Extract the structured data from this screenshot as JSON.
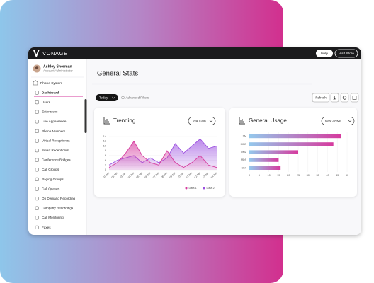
{
  "header": {
    "brand": "VONAGE",
    "buttons": [
      "Help",
      "Visit Store"
    ]
  },
  "sidebar": {
    "user_name": "Ashley Sherman",
    "user_role": "Account Administrator",
    "section": "Phone System",
    "items": [
      "Dashboard",
      "Users",
      "Extensions",
      "Line Appearance",
      "Phone Numbers",
      "Virtual Receptionist",
      "Smart Receptionist",
      "Conference Bridges",
      "Call Groups",
      "Paging Groups",
      "Call Queues",
      "On Demand Recording",
      "Company Recordings",
      "Call Monitoring",
      "Faxes"
    ],
    "active": 0
  },
  "main": {
    "title": "General Stats",
    "filter": "Today",
    "advanced_filters": "Advanced Filters",
    "refresh": "Refresh"
  },
  "chart_data": [
    {
      "type": "area",
      "title": "Trending",
      "dropdown": "Total Calls",
      "categories": [
        "01 Jan",
        "02 Jan",
        "03 Jan",
        "04 Jan",
        "05 Jan",
        "06 Jan",
        "07 Jan",
        "08 Jan",
        "09 Jan",
        "10 Jan",
        "11 Jan",
        "12 Jan",
        "13 Jan",
        "14 Jan"
      ],
      "series": [
        {
          "name": "Data 1",
          "color": "#d63a9e",
          "values": [
            1,
            3,
            7,
            12,
            6,
            3,
            2,
            8,
            3,
            1,
            3,
            6,
            2,
            1
          ]
        },
        {
          "name": "Data 2",
          "color": "#9b4fe0",
          "values": [
            2,
            4,
            5,
            6,
            3,
            5,
            3,
            5,
            11,
            7,
            10,
            13,
            9,
            10
          ]
        }
      ],
      "ylim": [
        0,
        14
      ],
      "yticks": [
        0,
        2,
        4,
        6,
        8,
        10,
        12,
        14
      ],
      "grid": true
    },
    {
      "type": "bar",
      "orientation": "horizontal",
      "title": "General Usage",
      "dropdown": "Most Active",
      "categories": [
        "SM",
        "MOD",
        "DMZ",
        "MDS",
        "NEX"
      ],
      "values": [
        47,
        43,
        25,
        15,
        16
      ],
      "colors": [
        "#94c8ec",
        "#d63a9e"
      ],
      "xlim": [
        0,
        50
      ],
      "xticks": [
        0,
        5,
        10,
        15,
        20,
        25,
        30,
        35,
        40,
        45,
        50
      ],
      "grid": true
    }
  ]
}
